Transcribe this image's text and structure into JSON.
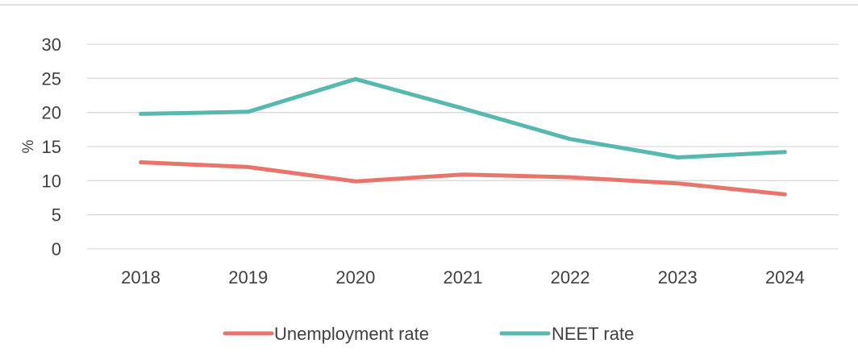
{
  "chart_data": {
    "type": "line",
    "title": "",
    "xlabel": "",
    "ylabel": "%",
    "categories": [
      "2018",
      "2019",
      "2020",
      "2021",
      "2022",
      "2023",
      "2024"
    ],
    "ylim": [
      0,
      30
    ],
    "yticks": [
      "0",
      "5",
      "10",
      "15",
      "20",
      "25",
      "30"
    ],
    "grid": true,
    "legend_position": "bottom",
    "series": [
      {
        "name": "Unemployment rate",
        "color": "#E8756C",
        "values": [
          12.7,
          12.0,
          9.9,
          10.9,
          10.5,
          9.6,
          8.0
        ]
      },
      {
        "name": "NEET rate",
        "color": "#56B8AE",
        "values": [
          19.8,
          20.1,
          24.9,
          20.6,
          16.1,
          13.4,
          14.2
        ]
      }
    ]
  }
}
